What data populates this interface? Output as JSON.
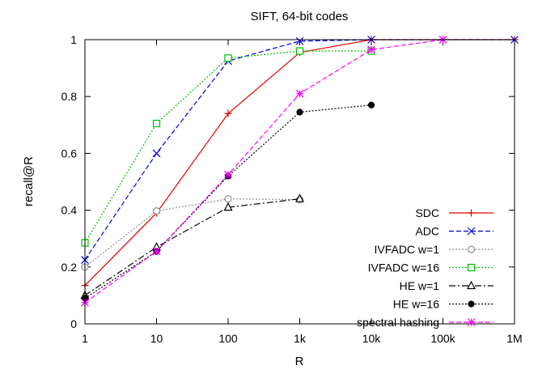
{
  "chart_data": {
    "type": "line",
    "title": "SIFT, 64-bit codes",
    "xlabel": "R",
    "ylabel": "recall@R",
    "x_scale": "log10",
    "xlim": [
      1,
      1000000
    ],
    "ylim": [
      0,
      1
    ],
    "x_ticks": [
      {
        "value": 1,
        "label": "1"
      },
      {
        "value": 10,
        "label": "10"
      },
      {
        "value": 100,
        "label": "100"
      },
      {
        "value": 1000,
        "label": "1k"
      },
      {
        "value": 10000,
        "label": "10k"
      },
      {
        "value": 100000,
        "label": "100k"
      },
      {
        "value": 1000000,
        "label": "1M"
      }
    ],
    "y_ticks": [
      {
        "value": 0,
        "label": "0"
      },
      {
        "value": 0.2,
        "label": "0.2"
      },
      {
        "value": 0.4,
        "label": "0.4"
      },
      {
        "value": 0.6,
        "label": "0.6"
      },
      {
        "value": 0.8,
        "label": "0.8"
      },
      {
        "value": 1,
        "label": "1"
      }
    ],
    "grid": false,
    "legend_position": "bottom-right",
    "series": [
      {
        "name": "SDC",
        "color": "#e00000",
        "dash": "solid",
        "marker": "plus",
        "x": [
          1,
          10,
          100,
          1000,
          10000,
          100000,
          1000000
        ],
        "y": [
          0.135,
          0.39,
          0.74,
          0.955,
          1.0,
          1.0,
          1.0
        ]
      },
      {
        "name": "ADC",
        "color": "#0000e0",
        "dash": "dashed",
        "marker": "cross",
        "x": [
          1,
          10,
          100,
          1000,
          10000,
          100000,
          1000000
        ],
        "y": [
          0.225,
          0.6,
          0.925,
          0.995,
          1.0,
          1.0,
          1.0
        ]
      },
      {
        "name": "IVFADC w=1",
        "color": "#909090",
        "dash": "dotted",
        "marker": "circle-open",
        "x": [
          1,
          10,
          100,
          1000
        ],
        "y": [
          0.2,
          0.397,
          0.44,
          0.437
        ]
      },
      {
        "name": "IVFADC w=16",
        "color": "#00c000",
        "dash": "dotted",
        "marker": "square-open",
        "x": [
          1,
          10,
          100,
          1000,
          10000
        ],
        "y": [
          0.285,
          0.705,
          0.935,
          0.96,
          0.96
        ]
      },
      {
        "name": "HE w=1",
        "color": "#000000",
        "dash": "dashdot",
        "marker": "triangle-open",
        "x": [
          1,
          10,
          100,
          1000
        ],
        "y": [
          0.1,
          0.27,
          0.41,
          0.44
        ]
      },
      {
        "name": "HE w=16",
        "color": "#000000",
        "dash": "dotted",
        "marker": "circle-filled",
        "x": [
          1,
          10,
          100,
          1000,
          10000
        ],
        "y": [
          0.09,
          0.255,
          0.52,
          0.745,
          0.77
        ]
      },
      {
        "name": "spectral hashing",
        "color": "#ff00ff",
        "dash": "dashed",
        "marker": "star",
        "x": [
          1,
          10,
          100,
          1000,
          10000,
          100000
        ],
        "y": [
          0.075,
          0.255,
          0.525,
          0.81,
          0.965,
          1.0
        ]
      }
    ]
  }
}
